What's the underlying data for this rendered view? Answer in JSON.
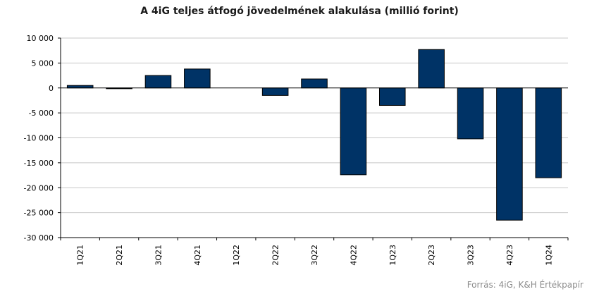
{
  "chart_data": {
    "type": "bar",
    "title": "A 4iG teljes átfogó jövedelmének alakulása (millió forint)",
    "source": "Forrás: 4iG, K&H Értékpapír",
    "categories": [
      "1Q21",
      "2Q21",
      "3Q21",
      "4Q21",
      "1Q22",
      "2Q22",
      "3Q22",
      "4Q22",
      "1Q23",
      "2Q23",
      "3Q23",
      "4Q23",
      "1Q24"
    ],
    "values": [
      500,
      -150,
      2500,
      3800,
      0,
      -1500,
      1800,
      -17400,
      -3500,
      7700,
      -10200,
      -26500,
      -18000
    ],
    "ylim": [
      -30000,
      10000
    ],
    "yticks": [
      10000,
      5000,
      0,
      -5000,
      -10000,
      -15000,
      -20000,
      -25000,
      -30000
    ],
    "ytick_labels": [
      "10 000",
      "5 000",
      "0",
      "-5 000",
      "-10 000",
      "-15 000",
      "-20 000",
      "-25 000",
      "-30 000"
    ],
    "xlabel": "",
    "ylabel": "",
    "grid": true,
    "bar_color": "#003366"
  }
}
